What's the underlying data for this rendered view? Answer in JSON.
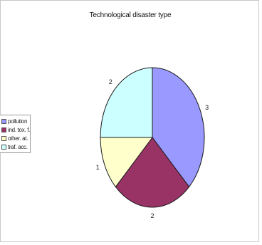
{
  "chart_data": {
    "type": "pie",
    "title": "Technological disaster type",
    "categories": [
      "pollution",
      "ind. tox. f.",
      "other. at.",
      "traf. acc."
    ],
    "values": [
      3,
      2,
      1,
      2
    ],
    "colors": [
      "#9999ff",
      "#993366",
      "#ffffcc",
      "#ccffff"
    ],
    "legend": {
      "position": "left",
      "entries": [
        "pollution",
        "ind. tox. f.",
        "other. at.",
        "traf. acc."
      ]
    }
  }
}
